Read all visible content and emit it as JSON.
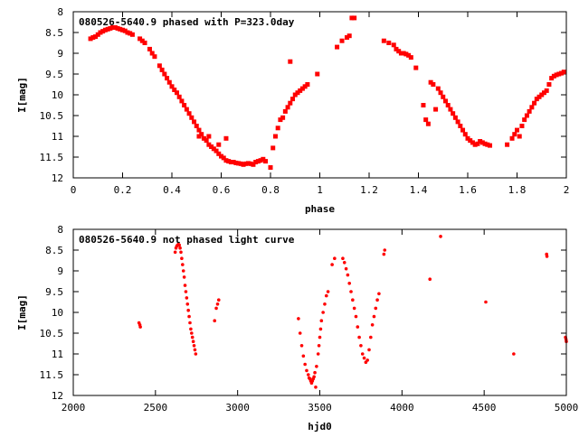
{
  "chart_data": [
    {
      "type": "scatter",
      "title": "080526-5640.9 phased with P=323.0day",
      "xlabel": "phase",
      "ylabel": "I[mag]",
      "xlim": [
        0,
        2
      ],
      "ylim": [
        12,
        8
      ],
      "y_inverted": true,
      "grid": false,
      "legend": "none",
      "marker_color": "#ff0000",
      "x_ticks": [
        "0",
        "0.2",
        "0.4",
        "0.6",
        "0.8",
        "1",
        "1.2",
        "1.4",
        "1.6",
        "1.8",
        "2"
      ],
      "y_ticks": [
        "8",
        "8.5",
        "9",
        "9.5",
        "10",
        "10.5",
        "11",
        "11.5",
        "12"
      ],
      "series": [
        {
          "points": [
            [
              0.07,
              8.65
            ],
            [
              0.08,
              8.62
            ],
            [
              0.09,
              8.6
            ],
            [
              0.1,
              8.55
            ],
            [
              0.11,
              8.5
            ],
            [
              0.12,
              8.47
            ],
            [
              0.13,
              8.44
            ],
            [
              0.14,
              8.42
            ],
            [
              0.15,
              8.4
            ],
            [
              0.16,
              8.38
            ],
            [
              0.17,
              8.38
            ],
            [
              0.18,
              8.4
            ],
            [
              0.19,
              8.42
            ],
            [
              0.2,
              8.44
            ],
            [
              0.21,
              8.46
            ],
            [
              0.22,
              8.5
            ],
            [
              0.23,
              8.52
            ],
            [
              0.24,
              8.55
            ],
            [
              0.27,
              8.65
            ],
            [
              0.28,
              8.7
            ],
            [
              0.29,
              8.75
            ],
            [
              0.31,
              8.9
            ],
            [
              0.32,
              9.0
            ],
            [
              0.33,
              9.08
            ],
            [
              0.35,
              9.3
            ],
            [
              0.36,
              9.4
            ],
            [
              0.37,
              9.5
            ],
            [
              0.38,
              9.6
            ],
            [
              0.39,
              9.7
            ],
            [
              0.4,
              9.8
            ],
            [
              0.41,
              9.88
            ],
            [
              0.42,
              9.95
            ],
            [
              0.43,
              10.05
            ],
            [
              0.44,
              10.15
            ],
            [
              0.45,
              10.25
            ],
            [
              0.46,
              10.35
            ],
            [
              0.47,
              10.45
            ],
            [
              0.48,
              10.55
            ],
            [
              0.49,
              10.65
            ],
            [
              0.5,
              10.75
            ],
            [
              0.51,
              10.85
            ],
            [
              0.52,
              10.95
            ],
            [
              0.53,
              11.05
            ],
            [
              0.54,
              11.1
            ],
            [
              0.55,
              11.2
            ],
            [
              0.56,
              11.25
            ],
            [
              0.57,
              11.3
            ],
            [
              0.58,
              11.35
            ],
            [
              0.59,
              11.42
            ],
            [
              0.6,
              11.48
            ],
            [
              0.61,
              11.52
            ],
            [
              0.62,
              11.58
            ],
            [
              0.63,
              11.6
            ],
            [
              0.64,
              11.62
            ],
            [
              0.65,
              11.62
            ],
            [
              0.66,
              11.64
            ],
            [
              0.67,
              11.65
            ],
            [
              0.68,
              11.66
            ],
            [
              0.69,
              11.68
            ],
            [
              0.7,
              11.66
            ],
            [
              0.71,
              11.65
            ],
            [
              0.72,
              11.66
            ],
            [
              0.73,
              11.68
            ],
            [
              0.74,
              11.62
            ],
            [
              0.75,
              11.6
            ],
            [
              0.76,
              11.58
            ],
            [
              0.77,
              11.55
            ],
            [
              0.78,
              11.6
            ],
            [
              0.51,
              11.0
            ],
            [
              0.55,
              11.0
            ],
            [
              0.59,
              11.2
            ],
            [
              0.62,
              11.05
            ],
            [
              0.8,
              11.75
            ],
            [
              0.81,
              11.28
            ],
            [
              0.82,
              11.0
            ],
            [
              0.83,
              10.8
            ],
            [
              0.84,
              10.6
            ],
            [
              0.85,
              10.55
            ],
            [
              0.86,
              10.4
            ],
            [
              0.87,
              10.3
            ],
            [
              0.88,
              10.2
            ],
            [
              0.89,
              10.1
            ],
            [
              0.9,
              10.0
            ],
            [
              0.91,
              9.95
            ],
            [
              0.92,
              9.9
            ],
            [
              0.93,
              9.85
            ],
            [
              0.94,
              9.8
            ],
            [
              0.95,
              9.75
            ],
            [
              0.88,
              9.2
            ],
            [
              0.99,
              9.5
            ],
            [
              1.07,
              8.85
            ],
            [
              1.09,
              8.7
            ],
            [
              1.11,
              8.62
            ],
            [
              1.12,
              8.58
            ],
            [
              1.13,
              8.15
            ],
            [
              1.14,
              8.15
            ],
            [
              1.26,
              8.7
            ],
            [
              1.28,
              8.75
            ],
            [
              1.3,
              8.8
            ],
            [
              1.31,
              8.9
            ],
            [
              1.32,
              8.95
            ],
            [
              1.33,
              9.0
            ],
            [
              1.34,
              9.0
            ],
            [
              1.35,
              9.02
            ],
            [
              1.36,
              9.05
            ],
            [
              1.37,
              9.1
            ],
            [
              1.39,
              9.35
            ],
            [
              1.42,
              10.25
            ],
            [
              1.43,
              10.6
            ],
            [
              1.44,
              10.7
            ],
            [
              1.45,
              9.7
            ],
            [
              1.46,
              9.75
            ],
            [
              1.47,
              10.35
            ],
            [
              1.48,
              9.85
            ],
            [
              1.49,
              9.95
            ],
            [
              1.5,
              10.05
            ],
            [
              1.51,
              10.15
            ],
            [
              1.52,
              10.25
            ],
            [
              1.53,
              10.35
            ],
            [
              1.54,
              10.45
            ],
            [
              1.55,
              10.55
            ],
            [
              1.56,
              10.65
            ],
            [
              1.57,
              10.75
            ],
            [
              1.58,
              10.85
            ],
            [
              1.59,
              10.95
            ],
            [
              1.6,
              11.05
            ],
            [
              1.61,
              11.1
            ],
            [
              1.62,
              11.15
            ],
            [
              1.63,
              11.2
            ],
            [
              1.64,
              11.18
            ],
            [
              1.65,
              11.12
            ],
            [
              1.66,
              11.15
            ],
            [
              1.67,
              11.18
            ],
            [
              1.68,
              11.2
            ],
            [
              1.69,
              11.22
            ],
            [
              1.76,
              11.2
            ],
            [
              1.78,
              11.05
            ],
            [
              1.79,
              10.95
            ],
            [
              1.8,
              10.85
            ],
            [
              1.81,
              11.0
            ],
            [
              1.82,
              10.75
            ],
            [
              1.83,
              10.6
            ],
            [
              1.84,
              10.5
            ],
            [
              1.85,
              10.4
            ],
            [
              1.86,
              10.3
            ],
            [
              1.87,
              10.2
            ],
            [
              1.88,
              10.1
            ],
            [
              1.89,
              10.05
            ],
            [
              1.9,
              10.0
            ],
            [
              1.91,
              9.95
            ],
            [
              1.92,
              9.9
            ],
            [
              1.93,
              9.75
            ],
            [
              1.94,
              9.6
            ],
            [
              1.95,
              9.55
            ],
            [
              1.96,
              9.52
            ],
            [
              1.97,
              9.5
            ],
            [
              1.98,
              9.48
            ],
            [
              1.99,
              9.45
            ]
          ]
        }
      ]
    },
    {
      "type": "scatter",
      "title": "080526-5640.9 not phased light curve",
      "xlabel": "hjd0",
      "ylabel": "I[mag]",
      "xlim": [
        2000,
        5000
      ],
      "ylim": [
        12,
        8
      ],
      "y_inverted": true,
      "grid": false,
      "legend": "none",
      "marker_color": "#ff0000",
      "x_ticks": [
        "2000",
        "2500",
        "3000",
        "3500",
        "4000",
        "4500",
        "5000"
      ],
      "y_ticks": [
        "8",
        "8.5",
        "9",
        "9.5",
        "10",
        "10.5",
        "11",
        "11.5",
        "12"
      ],
      "series": [
        {
          "points": [
            [
              2400,
              10.25
            ],
            [
              2405,
              10.3
            ],
            [
              2408,
              10.35
            ],
            [
              2620,
              8.55
            ],
            [
              2625,
              8.45
            ],
            [
              2630,
              8.4
            ],
            [
              2635,
              8.38
            ],
            [
              2640,
              8.36
            ],
            [
              2645,
              8.38
            ],
            [
              2650,
              8.45
            ],
            [
              2655,
              8.55
            ],
            [
              2660,
              8.7
            ],
            [
              2665,
              8.85
            ],
            [
              2670,
              9.0
            ],
            [
              2675,
              9.15
            ],
            [
              2680,
              9.35
            ],
            [
              2685,
              9.5
            ],
            [
              2690,
              9.65
            ],
            [
              2695,
              9.8
            ],
            [
              2700,
              9.95
            ],
            [
              2705,
              10.1
            ],
            [
              2710,
              10.25
            ],
            [
              2715,
              10.4
            ],
            [
              2720,
              10.5
            ],
            [
              2725,
              10.6
            ],
            [
              2730,
              10.7
            ],
            [
              2735,
              10.8
            ],
            [
              2740,
              10.9
            ],
            [
              2745,
              11.0
            ],
            [
              2860,
              10.2
            ],
            [
              2870,
              9.9
            ],
            [
              2878,
              9.8
            ],
            [
              2885,
              9.7
            ],
            [
              3370,
              10.15
            ],
            [
              3380,
              10.5
            ],
            [
              3390,
              10.8
            ],
            [
              3400,
              11.05
            ],
            [
              3410,
              11.25
            ],
            [
              3420,
              11.4
            ],
            [
              3430,
              11.5
            ],
            [
              3435,
              11.58
            ],
            [
              3440,
              11.6
            ],
            [
              3445,
              11.65
            ],
            [
              3450,
              11.7
            ],
            [
              3455,
              11.65
            ],
            [
              3460,
              11.6
            ],
            [
              3465,
              11.55
            ],
            [
              3470,
              11.45
            ],
            [
              3475,
              11.8
            ],
            [
              3480,
              11.3
            ],
            [
              3490,
              11.0
            ],
            [
              3495,
              10.8
            ],
            [
              3500,
              10.6
            ],
            [
              3505,
              10.4
            ],
            [
              3510,
              10.2
            ],
            [
              3520,
              10.0
            ],
            [
              3530,
              9.8
            ],
            [
              3540,
              9.6
            ],
            [
              3550,
              9.5
            ],
            [
              3575,
              8.85
            ],
            [
              3590,
              8.7
            ],
            [
              3640,
              8.7
            ],
            [
              3650,
              8.8
            ],
            [
              3660,
              8.95
            ],
            [
              3670,
              9.1
            ],
            [
              3680,
              9.3
            ],
            [
              3690,
              9.5
            ],
            [
              3700,
              9.7
            ],
            [
              3710,
              9.9
            ],
            [
              3720,
              10.1
            ],
            [
              3730,
              10.35
            ],
            [
              3740,
              10.6
            ],
            [
              3750,
              10.8
            ],
            [
              3760,
              11.0
            ],
            [
              3770,
              11.1
            ],
            [
              3780,
              11.2
            ],
            [
              3790,
              11.15
            ],
            [
              3800,
              10.9
            ],
            [
              3810,
              10.6
            ],
            [
              3820,
              10.3
            ],
            [
              3830,
              10.1
            ],
            [
              3840,
              9.9
            ],
            [
              3850,
              9.7
            ],
            [
              3860,
              9.55
            ],
            [
              3890,
              8.6
            ],
            [
              3895,
              8.5
            ],
            [
              4170,
              9.2
            ],
            [
              4235,
              8.17
            ],
            [
              4510,
              9.75
            ],
            [
              4680,
              11.0
            ],
            [
              4880,
              8.6
            ],
            [
              4882,
              8.65
            ],
            [
              4995,
              10.6
            ],
            [
              4998,
              10.65
            ],
            [
              5000,
              10.7
            ]
          ]
        }
      ]
    }
  ]
}
